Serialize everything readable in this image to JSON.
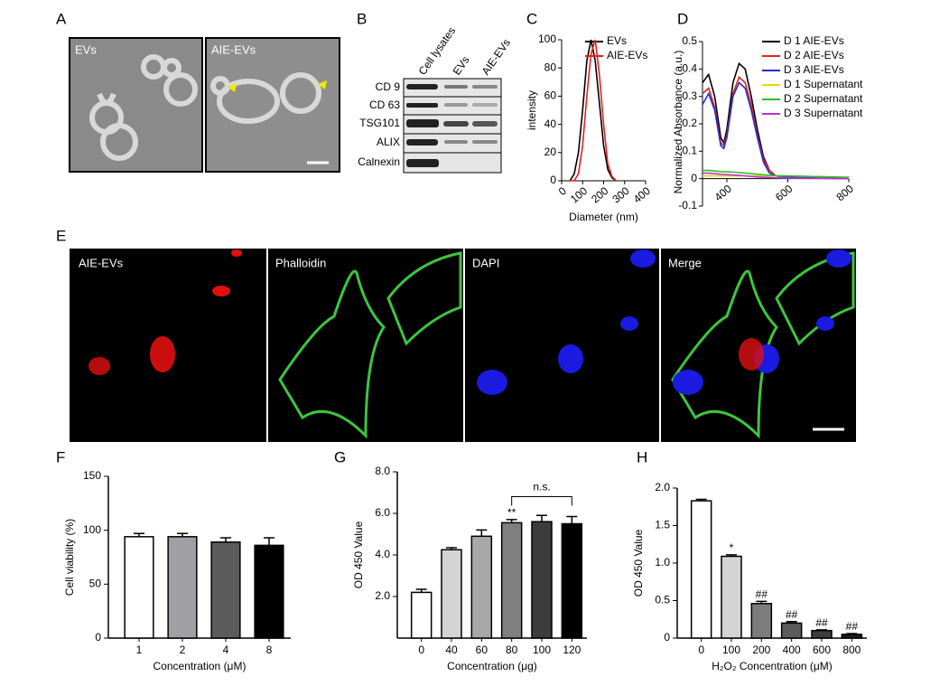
{
  "panel_labels": [
    "A",
    "B",
    "C",
    "D",
    "E",
    "F",
    "G",
    "H"
  ],
  "panel_a": {
    "images": [
      "EVs",
      "AIE-EVs"
    ]
  },
  "panel_b": {
    "columns": [
      "Cell lysates",
      "EVs",
      "AIE-EVs"
    ],
    "rows": [
      "CD 9",
      "CD 63",
      "TSG101",
      "ALIX",
      "Calnexin"
    ]
  },
  "panel_e": {
    "images": [
      "AIE-EVs",
      "Phalloidin",
      "DAPI",
      "Merge"
    ]
  },
  "chart_data": [
    {
      "type": "line",
      "ylabel": "intensity",
      "xlabel": "Diameter (nm)",
      "x": [
        40,
        60,
        80,
        100,
        120,
        140,
        160,
        180,
        200,
        220,
        240,
        260
      ],
      "series": [
        {
          "name": "EVs",
          "color": "#000000",
          "values": [
            0,
            5,
            20,
            50,
            85,
            100,
            85,
            55,
            25,
            8,
            2,
            0
          ]
        },
        {
          "name": "AIE-EVs",
          "color": "#e8201c",
          "values": [
            0,
            0,
            5,
            25,
            60,
            90,
            100,
            75,
            40,
            12,
            3,
            0
          ]
        }
      ],
      "xlim": [
        0,
        400
      ],
      "xticks": [
        0,
        100,
        200,
        300,
        400
      ],
      "ylim": [
        0,
        100
      ],
      "yticks": [
        0,
        20,
        40,
        60,
        80,
        100
      ]
    },
    {
      "type": "line",
      "ylabel": "Normalized Absorbance (a.u.)",
      "x": [
        320,
        340,
        360,
        380,
        390,
        400,
        420,
        440,
        460,
        480,
        500,
        520,
        540,
        560,
        600,
        800
      ],
      "series": [
        {
          "name": "D 1 AIE-EVs",
          "color": "#000000",
          "values": [
            0.35,
            0.38,
            0.3,
            0.15,
            0.13,
            0.18,
            0.35,
            0.42,
            0.4,
            0.3,
            0.18,
            0.08,
            0.03,
            0.01,
            0.005,
            0
          ]
        },
        {
          "name": "D 2 AIE-EVs",
          "color": "#e8201c",
          "values": [
            0.31,
            0.33,
            0.26,
            0.13,
            0.12,
            0.16,
            0.31,
            0.37,
            0.35,
            0.27,
            0.16,
            0.07,
            0.03,
            0.01,
            0.005,
            0
          ]
        },
        {
          "name": "D 3 AIE-EVs",
          "color": "#1f2fd0",
          "values": [
            0.27,
            0.31,
            0.25,
            0.12,
            0.11,
            0.15,
            0.3,
            0.35,
            0.33,
            0.25,
            0.15,
            0.06,
            0.02,
            0.01,
            0.005,
            0
          ]
        },
        {
          "name": "D 1 Supernatant",
          "color": "#e8d800",
          "values": [
            0.01,
            0.01,
            0.01,
            0.01,
            0.01,
            0.01,
            0.01,
            0.01,
            0.01,
            0.01,
            0.01,
            0.01,
            0.01,
            0.01,
            0.01,
            0.005
          ]
        },
        {
          "name": "D 2 Supernatant",
          "color": "#2cc02c",
          "values": [
            0.03,
            0.03,
            0.028,
            0.026,
            0.025,
            0.025,
            0.024,
            0.022,
            0.02,
            0.018,
            0.016,
            0.014,
            0.012,
            0.011,
            0.01,
            0.005
          ]
        },
        {
          "name": "D 3 Supernatant",
          "color": "#c030d0",
          "values": [
            0.02,
            0.02,
            0.018,
            0.016,
            0.015,
            0.015,
            0.013,
            0.012,
            0.01,
            0.008,
            0.006,
            0.005,
            0.004,
            0.003,
            0.002,
            0
          ]
        }
      ],
      "xlim": [
        320,
        800
      ],
      "xticks": [
        400,
        600,
        800
      ],
      "ylim": [
        -0.1,
        0.5
      ],
      "yticks": [
        -0.1,
        {
          "value": 0,
          "label": "0"
        },
        0.1,
        0.2,
        0.3,
        0.4,
        0.5
      ]
    },
    {
      "type": "bar",
      "ylabel": "Cell viability (%)",
      "xlabel": "Concentration (μM)",
      "categories": [
        "1",
        "2",
        "4",
        "8"
      ],
      "values": [
        94,
        94,
        89,
        86
      ],
      "errors": [
        3,
        3,
        4,
        7
      ],
      "colors": [
        "#ffffff",
        "#a0a0a4",
        "#5c5c5c",
        "#000000"
      ],
      "ylim": [
        0,
        150
      ],
      "yticks": [
        0,
        50,
        100,
        150
      ]
    },
    {
      "type": "bar",
      "ylabel": "OD 450 Value",
      "xlabel": "Concentration (μg)",
      "categories": [
        "0",
        "40",
        "60",
        "80",
        "100",
        "120"
      ],
      "values": [
        2.2,
        4.25,
        4.9,
        5.55,
        5.6,
        5.5
      ],
      "errors": [
        0.15,
        0.1,
        0.3,
        0.15,
        0.3,
        0.35
      ],
      "colors": [
        "#ffffff",
        "#d4d4d4",
        "#a8a8a8",
        "#808080",
        "#3c3c3c",
        "#000000"
      ],
      "ylim": [
        0,
        8
      ],
      "yticks": [
        {
          "value": 2,
          "label": "2.0"
        },
        {
          "value": 4,
          "label": "4.0"
        },
        {
          "value": 6,
          "label": "6.0"
        },
        {
          "value": 8,
          "label": "8.0"
        }
      ],
      "annotations": [
        {
          "category": "80",
          "text": "**"
        }
      ],
      "brackets": [
        {
          "from": "80",
          "to": "120",
          "text": "n.s."
        }
      ]
    },
    {
      "type": "bar",
      "ylabel": "OD 450 Value",
      "xlabel": "H₂O₂ Concentration (μM)",
      "categories": [
        "0",
        "100",
        "200",
        "400",
        "600",
        "800"
      ],
      "values": [
        1.83,
        1.09,
        0.46,
        0.2,
        0.1,
        0.05
      ],
      "errors": [
        0.02,
        0.02,
        0.03,
        0.02,
        0.01,
        0.01
      ],
      "colors": [
        "#ffffff",
        "#d4d4d4",
        "#7c7c7c",
        "#5c5c5c",
        "#3c3c3c",
        "#1c1c1c"
      ],
      "ylim": [
        0,
        2
      ],
      "yticks": [
        0,
        0.5,
        {
          "value": 1,
          "label": "1.0"
        },
        1.5,
        {
          "value": 2,
          "label": "2.0"
        }
      ],
      "annotations": [
        {
          "category": "100",
          "text": "*"
        },
        {
          "category": "200",
          "text": "##"
        },
        {
          "category": "400",
          "text": "##"
        },
        {
          "category": "600",
          "text": "##"
        },
        {
          "category": "800",
          "text": "##"
        }
      ]
    }
  ]
}
